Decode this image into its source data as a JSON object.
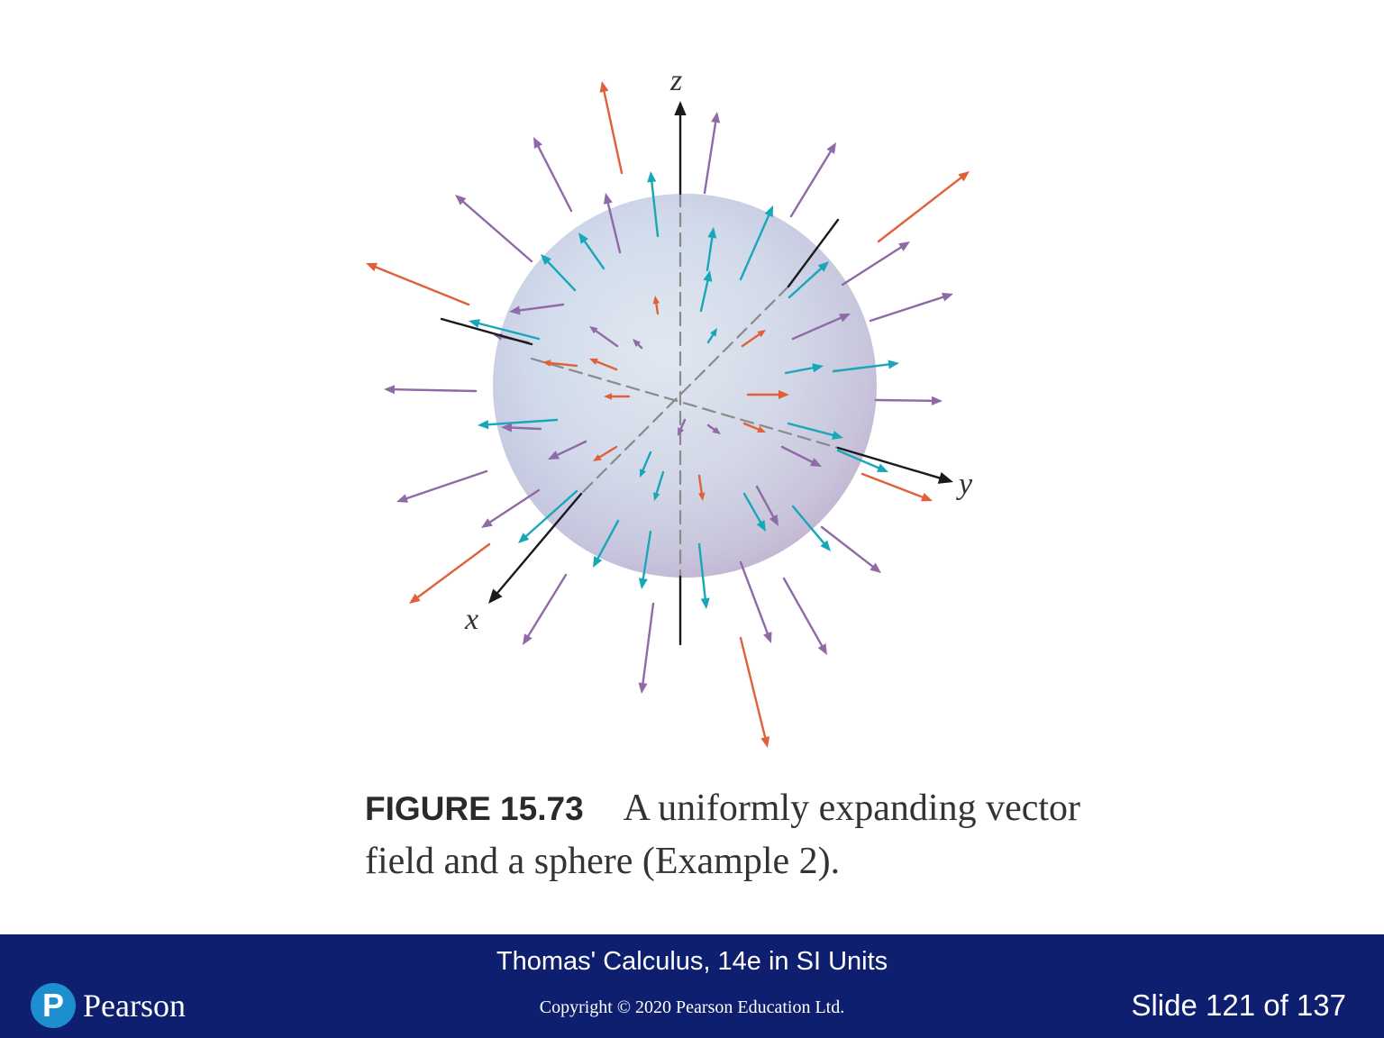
{
  "figure": {
    "axis_labels": {
      "x": "x",
      "y": "y",
      "z": "z"
    },
    "colors": {
      "sphere_light": "#dfe9f2",
      "sphere_mid": "#c8d6ea",
      "sphere_edge": "#b3b7d8",
      "arrow_orange": "#e0603a",
      "arrow_purple": "#8e6aa6",
      "arrow_teal": "#18a7b8",
      "axis": "#1a1a1a",
      "hidden_axis": "#8a8a8a"
    }
  },
  "caption": {
    "label": "FIGURE 15.73",
    "text": "A uniformly expanding vector field and a sphere (Example 2)."
  },
  "footer": {
    "book_title": "Thomas' Calculus, 14e in SI Units",
    "copyright": "Copyright © 2020 Pearson Education Ltd.",
    "logo_mark": "P",
    "logo_text": "Pearson",
    "slide_indicator": "Slide 121 of 137",
    "background_color": "#0d1f6e"
  }
}
